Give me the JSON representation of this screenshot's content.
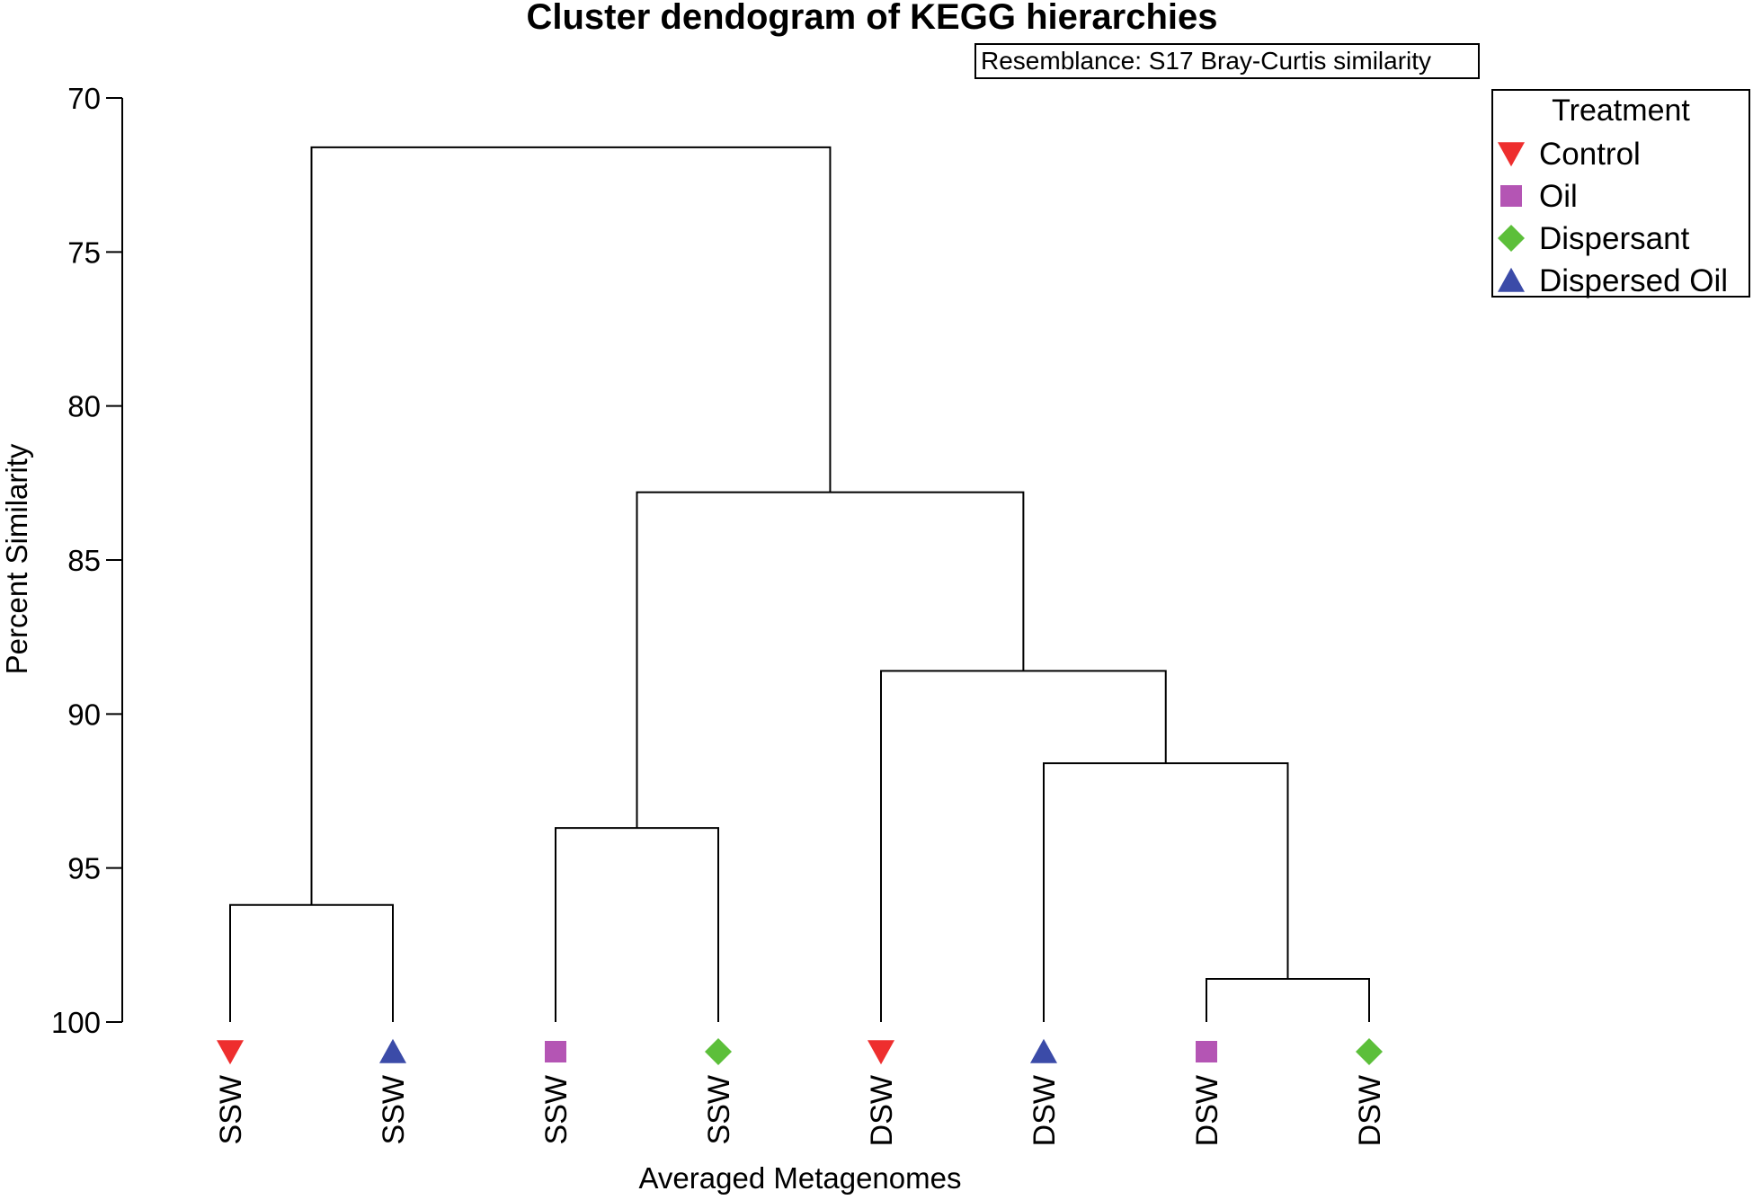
{
  "chart_data": {
    "type": "dendrogram",
    "title": "Cluster dendogram of KEGG hierarchies",
    "resemblance_note": "Resemblance: S17 Bray-Curtis similarity",
    "xlabel": "Averaged Metagenomes",
    "ylabel": "Percent Similarity",
    "ylim": [
      70,
      100
    ],
    "y_inverted": true,
    "yticks": [
      "70",
      "75",
      "80",
      "85",
      "90",
      "95",
      "100"
    ],
    "leaves": [
      {
        "label": "SSW",
        "treatment": "Control"
      },
      {
        "label": "SSW",
        "treatment": "Dispersed Oil"
      },
      {
        "label": "SSW",
        "treatment": "Oil"
      },
      {
        "label": "SSW",
        "treatment": "Dispersant"
      },
      {
        "label": "DSW",
        "treatment": "Control"
      },
      {
        "label": "DSW",
        "treatment": "Dispersed Oil"
      },
      {
        "label": "DSW",
        "treatment": "Oil"
      },
      {
        "label": "DSW",
        "treatment": "Dispersant"
      }
    ],
    "merges": [
      {
        "left": "L0",
        "right": "L1",
        "similarity": 96.2
      },
      {
        "left": "L2",
        "right": "L3",
        "similarity": 93.7
      },
      {
        "left": "L6",
        "right": "L7",
        "similarity": 98.6
      },
      {
        "left": "L5",
        "right": "N2",
        "similarity": 91.6
      },
      {
        "left": "L4",
        "right": "N3",
        "similarity": 88.6
      },
      {
        "left": "N1",
        "right": "N4",
        "similarity": 82.8
      },
      {
        "left": "N0",
        "right": "N5",
        "similarity": 71.6
      }
    ],
    "legend": {
      "title": "Treatment",
      "position": "top-right",
      "items": [
        {
          "name": "Control",
          "marker": "triangle-down",
          "color": "#ee2e2e"
        },
        {
          "name": "Oil",
          "marker": "square",
          "color": "#b455b4"
        },
        {
          "name": "Dispersant",
          "marker": "diamond",
          "color": "#5cbf3a"
        },
        {
          "name": "Dispersed Oil",
          "marker": "triangle-up",
          "color": "#3b4ba8"
        }
      ]
    }
  }
}
